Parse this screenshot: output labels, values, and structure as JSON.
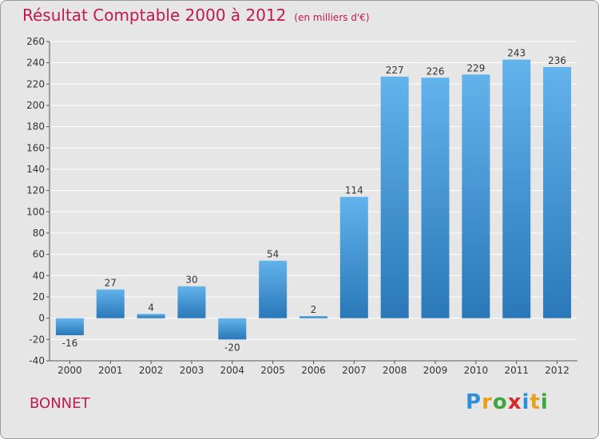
{
  "title": "Résultat Comptable 2000 à 2012",
  "subtitle": "(en milliers d'€)",
  "commune": "BONNET",
  "logo": {
    "text": "Proxiti",
    "letters": [
      {
        "ch": "P",
        "color": "#2f8fd8"
      },
      {
        "ch": "r",
        "color": "#e8a020"
      },
      {
        "ch": "o",
        "color": "#3aa83a"
      },
      {
        "ch": "x",
        "color": "#d42a2a"
      },
      {
        "ch": "i",
        "color": "#2f8fd8"
      },
      {
        "ch": "t",
        "color": "#e8a020"
      },
      {
        "ch": "i",
        "color": "#3aa83a"
      }
    ]
  },
  "colors": {
    "bar_light": "#62b2ec",
    "bar_dark": "#2a78b8",
    "accent": "#c0184f",
    "grid": "#ffffff",
    "plot_bg": "#e6e6e6"
  },
  "chart_data": {
    "type": "bar",
    "title": "Résultat Comptable 2000 à 2012",
    "subtitle": "(en milliers d'€)",
    "xlabel": "",
    "ylabel": "",
    "categories": [
      "2000",
      "2001",
      "2002",
      "2003",
      "2004",
      "2005",
      "2006",
      "2007",
      "2008",
      "2009",
      "2010",
      "2011",
      "2012"
    ],
    "values": [
      -16,
      27,
      4,
      30,
      -20,
      54,
      2,
      114,
      227,
      226,
      229,
      243,
      236
    ],
    "ylim": [
      -40,
      260
    ],
    "yticks": [
      -40,
      -20,
      0,
      20,
      40,
      60,
      80,
      100,
      120,
      140,
      160,
      180,
      200,
      220,
      240,
      260
    ],
    "grid": true,
    "legend": "none"
  }
}
